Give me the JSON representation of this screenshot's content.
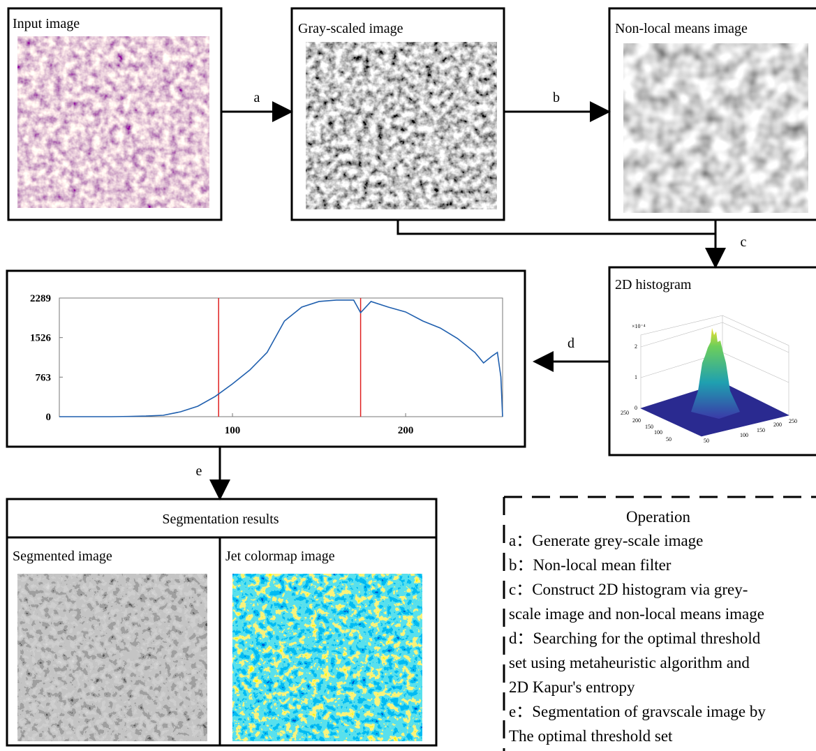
{
  "panels": {
    "input": {
      "label": "Input image"
    },
    "gray": {
      "label": "Gray-scaled image"
    },
    "nlm": {
      "label": "Non-local means image"
    },
    "hist2d": {
      "label": "2D histogram",
      "zscale": "×10⁻⁴",
      "zticks": [
        0,
        1,
        2
      ],
      "left_ticks": [
        250,
        200,
        150,
        100,
        50
      ],
      "right_ticks": [
        50,
        100,
        150,
        200,
        250
      ]
    }
  },
  "arrows": {
    "a": "a",
    "b": "b",
    "c": "c",
    "d": "d",
    "e": "e"
  },
  "histogram": {
    "xlim": [
      0,
      256
    ],
    "ylim": [
      0,
      2289
    ],
    "yticks": [
      0,
      763,
      1526,
      2289
    ],
    "xticks": [
      100,
      200
    ],
    "thresholds": [
      92,
      174
    ],
    "color": "#1f5fae",
    "threshold_color": "#e02020",
    "x": [
      0,
      10,
      20,
      30,
      40,
      50,
      60,
      70,
      80,
      90,
      100,
      110,
      120,
      130,
      140,
      150,
      160,
      170,
      174,
      180,
      190,
      200,
      210,
      220,
      230,
      240,
      245,
      250,
      253,
      255,
      256
    ],
    "values": [
      0,
      0,
      0,
      0,
      5,
      12,
      27,
      94,
      202,
      390,
      633,
      900,
      1240,
      1845,
      2114,
      2222,
      2249,
      2249,
      2006,
      2222,
      2114,
      2020,
      1845,
      1710,
      1508,
      1240,
      1037,
      1171,
      1240,
      770,
      0
    ]
  },
  "segmentation": {
    "title": "Segmentation results",
    "segmented": "Segmented image",
    "jet": "Jet colormap image"
  },
  "legend": {
    "title": "Operation",
    "lines": [
      "a：Generate grey-scale image",
      "b：Non-local mean filter",
      "c：Construct 2D histogram via grey-",
      "scale image and non-local means image",
      "d：Searching for the optimal threshold",
      "set using metaheuristic algorithm and",
      "2D Kapur's entropy",
      "e：Segmentation of gravscale image by",
      "The optimal threshold set"
    ]
  }
}
